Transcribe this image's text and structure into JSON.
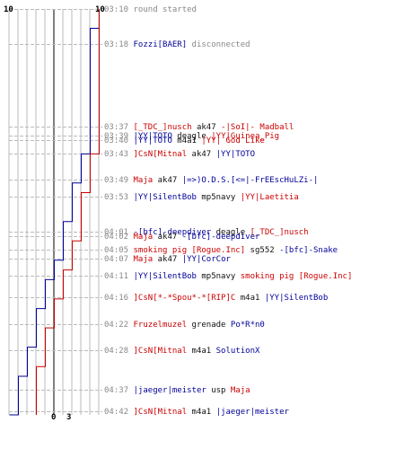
{
  "colors": {
    "red": "#cc0000",
    "blue": "#000099",
    "grid": "#bbbbbb",
    "axis": "#000000",
    "gray": "#888888"
  },
  "score_labels": {
    "blue_top": "10",
    "red_top": "10",
    "blue_bottom": "0",
    "red_bottom": "3"
  },
  "chart_data": {
    "type": "line",
    "x_range": [
      0,
      10
    ],
    "series": [
      {
        "color": "#000099",
        "points": [
          [
            10,
            0
          ],
          [
            9,
            2
          ],
          [
            8,
            15
          ],
          [
            7,
            18
          ],
          [
            6,
            22
          ],
          [
            5,
            26
          ],
          [
            4,
            28
          ],
          [
            3,
            31
          ],
          [
            2,
            35
          ],
          [
            1,
            38
          ],
          [
            0,
            42
          ]
        ]
      },
      {
        "color": "#cc0000",
        "points": [
          [
            10,
            0
          ],
          [
            9,
            15
          ],
          [
            8,
            19
          ],
          [
            7,
            24
          ],
          [
            6,
            27
          ],
          [
            5,
            30
          ],
          [
            4,
            33
          ],
          [
            3,
            37
          ],
          [
            3,
            42
          ]
        ]
      }
    ]
  },
  "events": [
    {
      "time": "03:10",
      "segs": [
        {
          "t": "round started",
          "c": "gry"
        }
      ]
    },
    {
      "time": "03:18",
      "segs": [
        {
          "t": "Fozzi[BAER]",
          "c": "blue"
        },
        {
          "t": " disconnected",
          "c": "gry"
        }
      ]
    },
    {
      "time": "03:37",
      "segs": [
        {
          "t": "[_TDC_]nusch",
          "c": "red"
        },
        {
          "t": " ak47 ",
          "c": "blk"
        },
        {
          "t": "-|SoI|- Madball",
          "c": "red"
        }
      ]
    },
    {
      "time": "03:39",
      "segs": [
        {
          "t": "|YY|TOTO",
          "c": "blue"
        },
        {
          "t": " deagle ",
          "c": "blk"
        },
        {
          "t": "|YY|Guinea_Pig",
          "c": "red"
        }
      ]
    },
    {
      "time": "03:40",
      "segs": [
        {
          "t": "|YY|TOTO",
          "c": "blue"
        },
        {
          "t": " m4a1 ",
          "c": "blk"
        },
        {
          "t": "|YY| God Like",
          "c": "red"
        }
      ]
    },
    {
      "time": "03:43",
      "segs": [
        {
          "t": "]CsN[Mitnal",
          "c": "red"
        },
        {
          "t": " ak47 ",
          "c": "blk"
        },
        {
          "t": "|YY|TOTO",
          "c": "blue"
        }
      ]
    },
    {
      "time": "03:49",
      "segs": [
        {
          "t": "Maja",
          "c": "red"
        },
        {
          "t": " ak47 ",
          "c": "blk"
        },
        {
          "t": "|=>)O.D.S.[<=|-FrEEscHuLZi-|",
          "c": "blue"
        }
      ]
    },
    {
      "time": "03:53",
      "segs": [
        {
          "t": "|YY|SilentBob",
          "c": "blue"
        },
        {
          "t": " mp5navy ",
          "c": "blk"
        },
        {
          "t": "|YY|Laetitia",
          "c": "red"
        }
      ]
    },
    {
      "time": "04:01",
      "segs": [
        {
          "t": "-[bfc]-deepdiver",
          "c": "blue"
        },
        {
          "t": " deagle ",
          "c": "blk"
        },
        {
          "t": "[_TDC_]nusch",
          "c": "red"
        }
      ]
    },
    {
      "time": "04:02",
      "segs": [
        {
          "t": "Maja",
          "c": "red"
        },
        {
          "t": " ak47 ",
          "c": "blk"
        },
        {
          "t": "-[bfc]-deepdiver",
          "c": "blue"
        }
      ]
    },
    {
      "time": "04:05",
      "segs": [
        {
          "t": "smoking pig [Rogue.Inc]",
          "c": "red"
        },
        {
          "t": " sg552 ",
          "c": "blk"
        },
        {
          "t": "-[bfc]-Snake",
          "c": "blue"
        }
      ]
    },
    {
      "time": "04:07",
      "segs": [
        {
          "t": "Maja",
          "c": "red"
        },
        {
          "t": " ak47 ",
          "c": "blk"
        },
        {
          "t": "|YY|CorCor",
          "c": "blue"
        }
      ]
    },
    {
      "time": "04:11",
      "segs": [
        {
          "t": "|YY|SilentBob",
          "c": "blue"
        },
        {
          "t": " mp5navy ",
          "c": "blk"
        },
        {
          "t": "smoking pig [Rogue.Inc]",
          "c": "red"
        }
      ]
    },
    {
      "time": "04:16",
      "segs": [
        {
          "t": "]CsN[*-*Spou*-*[RIP]C",
          "c": "red"
        },
        {
          "t": " m4a1 ",
          "c": "blk"
        },
        {
          "t": "|YY|SilentBob",
          "c": "blue"
        }
      ]
    },
    {
      "time": "04:22",
      "segs": [
        {
          "t": "Fruzelmuzel",
          "c": "red"
        },
        {
          "t": " grenade ",
          "c": "blk"
        },
        {
          "t": "Po*R*n0",
          "c": "blue"
        }
      ]
    },
    {
      "time": "04:28",
      "segs": [
        {
          "t": "]CsN[Mitnal",
          "c": "red"
        },
        {
          "t": " m4a1 ",
          "c": "blk"
        },
        {
          "t": "SolutionX",
          "c": "blue"
        }
      ]
    },
    {
      "time": "04:37",
      "segs": [
        {
          "t": "|jaeger|meister",
          "c": "blue"
        },
        {
          "t": " usp ",
          "c": "blk"
        },
        {
          "t": "Maja",
          "c": "red"
        }
      ]
    },
    {
      "time": "04:42",
      "segs": [
        {
          "t": "]CsN[Mitnal",
          "c": "red"
        },
        {
          "t": " m4a1 ",
          "c": "blk"
        },
        {
          "t": "|jaeger|meister",
          "c": "blue"
        }
      ]
    }
  ]
}
